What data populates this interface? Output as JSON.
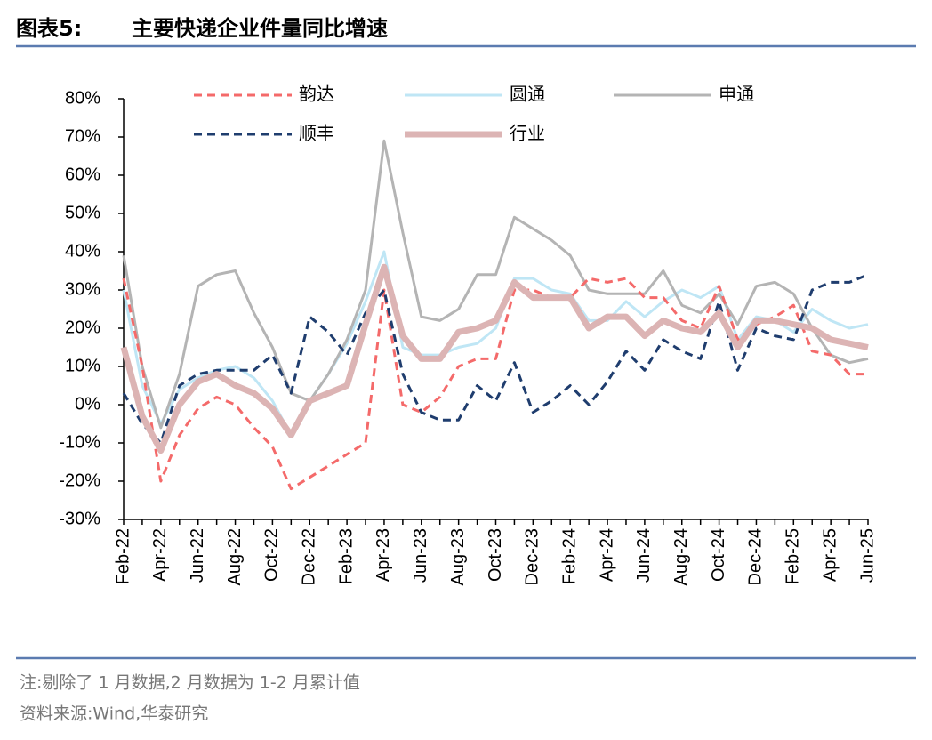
{
  "header": {
    "label": "图表5:",
    "title": "主要快递企业件量同比增速"
  },
  "chart_data": {
    "type": "line",
    "categories": [
      "Feb-22",
      null,
      "Apr-22",
      null,
      "Jun-22",
      null,
      "Aug-22",
      null,
      "Oct-22",
      null,
      "Dec-22",
      null,
      "Feb-23",
      null,
      "Apr-23",
      null,
      "Jun-23",
      null,
      "Aug-23",
      null,
      "Oct-23",
      null,
      "Dec-23",
      null,
      "Feb-24",
      null,
      "Apr-24",
      null,
      "Jun-24",
      null,
      "Aug-24",
      null,
      "Oct-24",
      null,
      "Dec-24",
      null,
      "Feb-25",
      null,
      "Apr-25",
      null,
      "Jun-25"
    ],
    "ylim": [
      -30,
      80
    ],
    "yticks": [
      {
        "value": -30,
        "label": "-30%"
      },
      {
        "value": -20,
        "label": "-20%"
      },
      {
        "value": -10,
        "label": "-10%"
      },
      {
        "value": 0,
        "label": "0%"
      },
      {
        "value": 10,
        "label": "10%"
      },
      {
        "value": 20,
        "label": "20%"
      },
      {
        "value": 30,
        "label": "30%"
      },
      {
        "value": 40,
        "label": "40%"
      },
      {
        "value": 50,
        "label": "50%"
      },
      {
        "value": 60,
        "label": "60%"
      },
      {
        "value": 70,
        "label": "70%"
      },
      {
        "value": 80,
        "label": "80%"
      }
    ],
    "series": [
      {
        "name": "韵达",
        "color": "#f46a6a",
        "line_style": "dashed",
        "values": [
          33,
          10,
          -20,
          -8,
          -1,
          2,
          0,
          -6,
          -11,
          -22,
          -19,
          -16,
          -13,
          -10,
          30,
          0,
          -2,
          2,
          10,
          12,
          12,
          30,
          30,
          28,
          28,
          33,
          32,
          33,
          28,
          28,
          22,
          20,
          31,
          17,
          21,
          23,
          26,
          14,
          13,
          8,
          8
        ]
      },
      {
        "name": "圆通",
        "color": "#bfe6f5",
        "line_style": "solid",
        "values": [
          30,
          5,
          -5,
          4,
          7,
          9,
          10,
          7,
          1,
          -8,
          1,
          8,
          16,
          27,
          40,
          15,
          13,
          13,
          15,
          16,
          20,
          33,
          33,
          30,
          29,
          22,
          22,
          27,
          23,
          27,
          30,
          28,
          31,
          17,
          23,
          22,
          19,
          25,
          22,
          20,
          21
        ]
      },
      {
        "name": "申通",
        "color": "#b4b4b4",
        "line_style": "solid",
        "values": [
          39,
          10,
          -6,
          8,
          31,
          34,
          35,
          24,
          15,
          3,
          1,
          8,
          17,
          30,
          69,
          45,
          23,
          22,
          25,
          34,
          34,
          49,
          46,
          43,
          39,
          30,
          29,
          29,
          29,
          35,
          26,
          24,
          29,
          21,
          31,
          32,
          29,
          20,
          13,
          11,
          12
        ]
      },
      {
        "name": "顺丰",
        "color": "#1f3d6e",
        "line_style": "dashed",
        "values": [
          3,
          -5,
          -10,
          5,
          8,
          9,
          9,
          9,
          13,
          3,
          23,
          19,
          13,
          24,
          30,
          8,
          -2,
          -4,
          -4,
          5,
          1,
          11,
          -2,
          1,
          5,
          0,
          6,
          14,
          9,
          17,
          14,
          12,
          27,
          9,
          20,
          18,
          17,
          30,
          32,
          32,
          34
        ]
      },
      {
        "name": "行业",
        "color": "#dcb4b4",
        "line_style": "thick",
        "values": [
          15,
          -3,
          -12,
          0,
          6,
          8,
          5,
          3,
          -1,
          -8,
          1,
          3,
          5,
          21,
          36,
          18,
          12,
          12,
          19,
          20,
          22,
          32,
          28,
          28,
          28,
          20,
          23,
          23,
          18,
          22,
          20,
          19,
          24,
          15,
          22,
          22,
          21,
          20,
          17,
          16,
          15
        ]
      }
    ]
  },
  "notes": [
    "注:剔除了 1 月数据,2 月数据为 1-2 月累计值",
    "资料来源:Wind,华泰研究"
  ]
}
